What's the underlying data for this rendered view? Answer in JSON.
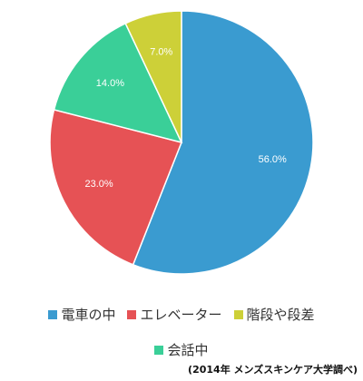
{
  "chart_data": {
    "type": "pie",
    "start": "12 o'clock, clockwise",
    "slices": [
      {
        "label": "電車の中",
        "value": 56.0,
        "value_label": "56.0%",
        "color": "#3a9bd0"
      },
      {
        "label": "エレベーター",
        "value": 23.0,
        "value_label": "23.0%",
        "color": "#e65255"
      },
      {
        "label": "会話中",
        "value": 14.0,
        "value_label": "14.0%",
        "color": "#3acf98"
      },
      {
        "label": "階段や段差",
        "value": 7.0,
        "value_label": "7.0%",
        "color": "#cdd038"
      }
    ],
    "legend_position": "bottom",
    "legend_order": [
      "電車の中",
      "エレベーター",
      "階段や段差",
      "会話中"
    ]
  },
  "legend": {
    "items": [
      {
        "label": "電車の中",
        "color": "#3a9bd0"
      },
      {
        "label": "エレベーター",
        "color": "#e65255"
      },
      {
        "label": "階段や段差",
        "color": "#cdd038"
      },
      {
        "label": "会話中",
        "color": "#3acf98"
      }
    ]
  },
  "source_note": "(2014年 メンズスキンケア大学調べ)"
}
